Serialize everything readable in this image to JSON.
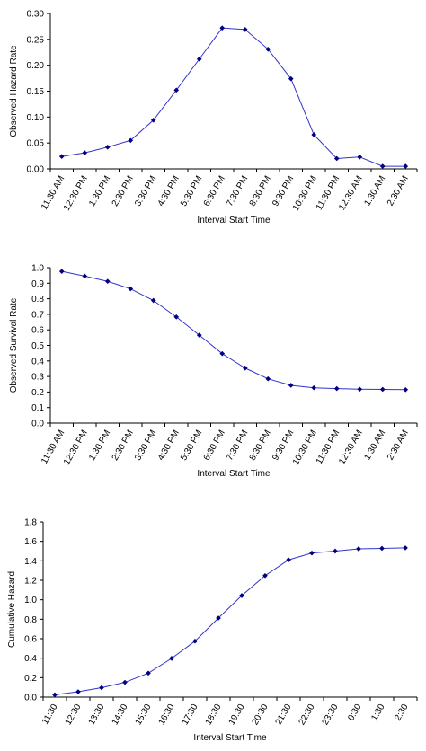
{
  "chart_data": [
    {
      "type": "line",
      "xlabel": "Interval Start Time",
      "ylabel": "Observed Hazard Rate",
      "ylim": [
        0,
        0.3
      ],
      "ytick_step": 0.05,
      "ytick_decimals": 2,
      "grid": false,
      "legend": "none",
      "categories": [
        "11:30 AM",
        "12:30 PM",
        "1:30 PM",
        "2:30 PM",
        "3:30 PM",
        "4:30 PM",
        "5:30 PM",
        "6:30 PM",
        "7:30 PM",
        "8:30 PM",
        "9:30 PM",
        "10:30 PM",
        "11:30 PM",
        "12:30 AM",
        "1:30 AM",
        "2:30 AM"
      ],
      "series": [
        {
          "values": [
            0.024,
            0.031,
            0.042,
            0.055,
            0.094,
            0.152,
            0.212,
            0.272,
            0.269,
            0.231,
            0.174,
            0.066,
            0.02,
            0.023,
            0.005,
            0.005
          ]
        }
      ],
      "line_color": "#3333cc",
      "marker_color": "#000080"
    },
    {
      "type": "line",
      "xlabel": "Interval Start Time",
      "ylabel": "Observed Survival Rate",
      "ylim": [
        0,
        1.0
      ],
      "ytick_step": 0.1,
      "ytick_decimals": 1,
      "grid": false,
      "legend": "none",
      "categories": [
        "11:30 AM",
        "12:30 PM",
        "1:30 PM",
        "2:30 PM",
        "3:30 PM",
        "4:30 PM",
        "5:30 PM",
        "6:30 PM",
        "7:30 PM",
        "8:30 PM",
        "9:30 PM",
        "10:30 PM",
        "11:30 PM",
        "12:30 AM",
        "1:30 AM",
        "2:30 AM"
      ],
      "series": [
        {
          "values": [
            0.976,
            0.946,
            0.912,
            0.864,
            0.789,
            0.683,
            0.566,
            0.447,
            0.354,
            0.285,
            0.243,
            0.227,
            0.222,
            0.218,
            0.217,
            0.215
          ]
        }
      ],
      "line_color": "#3333cc",
      "marker_color": "#000080"
    },
    {
      "type": "line",
      "xlabel": "Interval Start Time",
      "ylabel": "Cumulative Hazard",
      "ylim": [
        0,
        1.8
      ],
      "ytick_step": 0.2,
      "ytick_decimals": 1,
      "grid": false,
      "legend": "none",
      "categories": [
        "11:30",
        "12:30",
        "13:30",
        "14:30",
        "15:30",
        "16:30",
        "17:30",
        "18:30",
        "19:30",
        "20:30",
        "21:30",
        "22:30",
        "23:30",
        "0:30",
        "1:30",
        "2:30"
      ],
      "series": [
        {
          "values": [
            0.024,
            0.055,
            0.097,
            0.152,
            0.246,
            0.398,
            0.575,
            0.812,
            1.043,
            1.248,
            1.41,
            1.48,
            1.5,
            1.523,
            1.528,
            1.533
          ]
        }
      ],
      "line_color": "#3333cc",
      "marker_color": "#000080"
    }
  ]
}
